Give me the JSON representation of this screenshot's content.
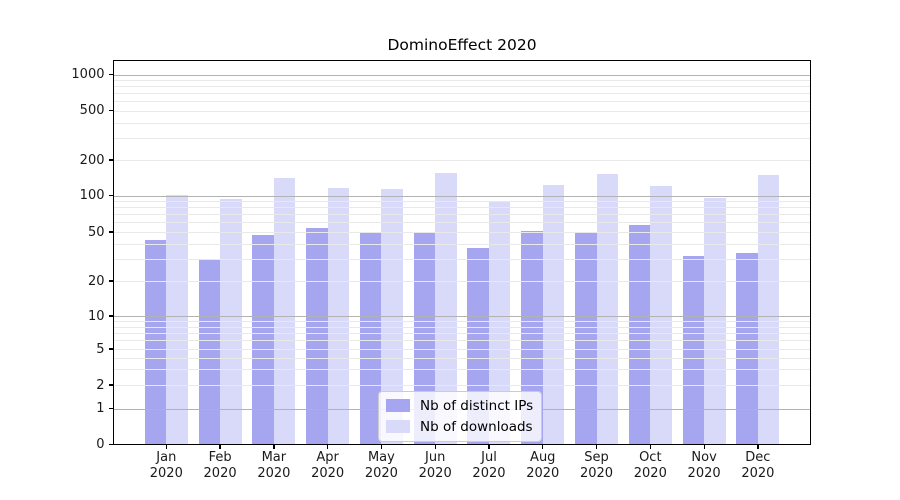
{
  "chart": {
    "title": "DominoEffect 2020",
    "y_axis_tick_labels": [
      "0",
      "1",
      "2",
      "5",
      "10",
      "20",
      "50",
      "100",
      "200",
      "500",
      "1000"
    ],
    "colors": {
      "ips_bar": "#a5a5f0",
      "downloads_bar": "#d9d9f9",
      "grid_major": "#b2b2b2",
      "grid_minor": "#e9e9e9",
      "spine": "#000000",
      "legend_border": "#cccccc"
    }
  },
  "chart_data": {
    "type": "bar",
    "title": "DominoEffect 2020",
    "xlabel": "",
    "ylabel": "",
    "categories": [
      "Jan 2020",
      "Feb 2020",
      "Mar 2020",
      "Apr 2020",
      "May 2020",
      "Jun 2020",
      "Jul 2020",
      "Aug 2020",
      "Sep 2020",
      "Oct 2020",
      "Nov 2020",
      "Dec 2020"
    ],
    "series": [
      {
        "name": "Nb of distinct IPs",
        "color": "#a5a5f0",
        "values": [
          43,
          30,
          47,
          54,
          50,
          50,
          37,
          51,
          50,
          57,
          32,
          34
        ]
      },
      {
        "name": "Nb of downloads",
        "color": "#d9d9f9",
        "values": [
          102,
          94,
          140,
          117,
          114,
          154,
          89,
          124,
          152,
          120,
          96,
          150
        ]
      }
    ],
    "yscale": "symlog",
    "y_ticks": [
      0,
      1,
      2,
      5,
      10,
      20,
      50,
      100,
      200,
      500,
      1000
    ],
    "ylim": [
      0,
      1400
    ],
    "grid": true,
    "legend_position": "lower center"
  }
}
